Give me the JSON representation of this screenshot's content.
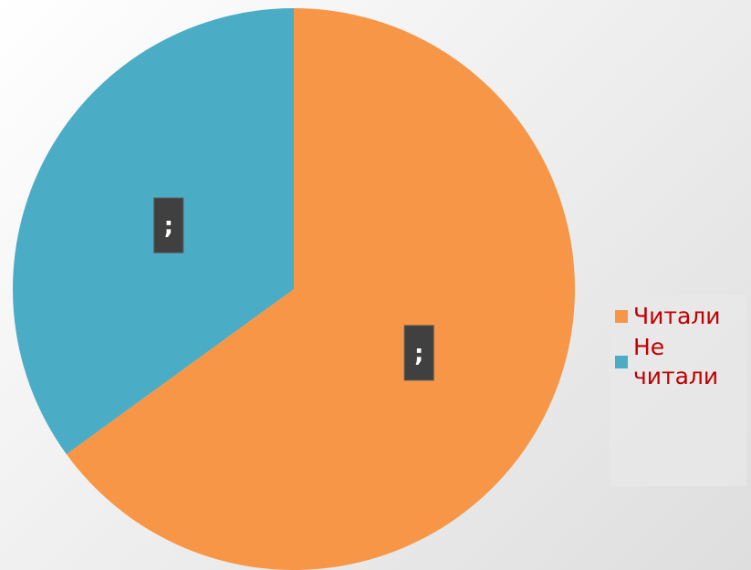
{
  "chart_data": {
    "type": "pie",
    "categories": [
      "Читали",
      "Не читали"
    ],
    "values": [
      65,
      35
    ],
    "colors": [
      "#f79646",
      "#4bacc6"
    ],
    "data_labels": [
      ";",
      ";"
    ],
    "title": "",
    "legend_position": "right"
  },
  "legend": {
    "items": [
      {
        "label": "Читали",
        "color": "#f79646"
      },
      {
        "label": "Не читали",
        "color": "#4bacc6"
      }
    ]
  }
}
